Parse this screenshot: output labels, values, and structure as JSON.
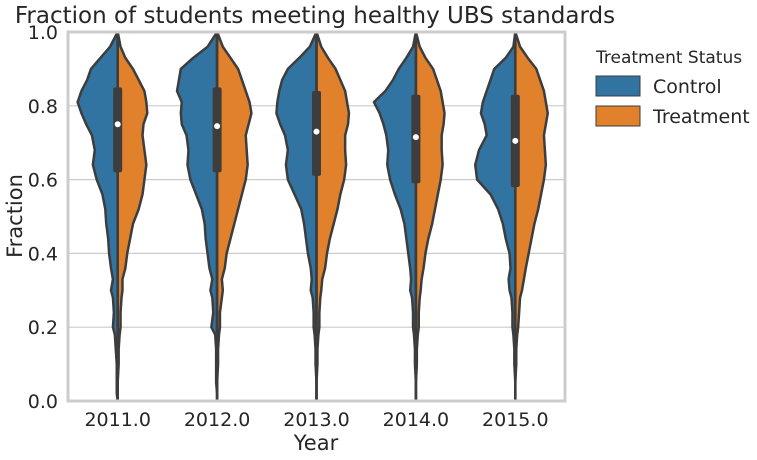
{
  "chart_data": {
    "type": "violin",
    "title": "Fraction of students meeting healthy UBS standards",
    "xlabel": "Year",
    "ylabel": "Fraction",
    "ylim": [
      0,
      1
    ],
    "yticks": [
      "0.0",
      "0.2",
      "0.4",
      "0.6",
      "0.8",
      "1.0"
    ],
    "categories": [
      "2011.0",
      "2012.0",
      "2013.0",
      "2014.0",
      "2015.0"
    ],
    "grid": "horizontal",
    "legend": {
      "title": "Treatment Status",
      "placement": "outside-right",
      "entries": [
        "Control",
        "Treatment"
      ]
    },
    "colors": {
      "Control": "#3274a1",
      "Treatment": "#e1812c",
      "outline": "#3d3d3d",
      "grid": "#cccccc",
      "frame": "#cccccc"
    },
    "summary": [
      {
        "category": "2011.0",
        "q1": 0.62,
        "median": 0.75,
        "q3": 0.85,
        "min": 0.02,
        "max": 1.0
      },
      {
        "category": "2012.0",
        "q1": 0.62,
        "median": 0.745,
        "q3": 0.85,
        "min": 0.0,
        "max": 1.0
      },
      {
        "category": "2013.0",
        "q1": 0.61,
        "median": 0.73,
        "q3": 0.84,
        "min": 0.0,
        "max": 1.0
      },
      {
        "category": "2014.0",
        "q1": 0.59,
        "median": 0.715,
        "q3": 0.83,
        "min": 0.0,
        "max": 1.0
      },
      {
        "category": "2015.0",
        "q1": 0.58,
        "median": 0.705,
        "q3": 0.83,
        "min": 0.0,
        "max": 1.0
      }
    ],
    "density_y": [
      0,
      0.02,
      0.05,
      0.1,
      0.14,
      0.18,
      0.2,
      0.24,
      0.28,
      0.3,
      0.33,
      0.36,
      0.4,
      0.44,
      0.48,
      0.52,
      0.56,
      0.6,
      0.64,
      0.68,
      0.72,
      0.75,
      0.78,
      0.81,
      0.84,
      0.87,
      0.9,
      0.93,
      0.96,
      1.0
    ],
    "series": [
      {
        "name": "Control",
        "densities": [
          [
            0.0,
            0.01,
            0.01,
            0.01,
            0.02,
            0.03,
            0.05,
            0.04,
            0.05,
            0.07,
            0.05,
            0.07,
            0.09,
            0.1,
            0.12,
            0.13,
            0.16,
            0.22,
            0.26,
            0.24,
            0.27,
            0.33,
            0.38,
            0.42,
            0.38,
            0.32,
            0.28,
            0.18,
            0.08,
            0.0
          ],
          [
            0.0,
            0.0,
            0.01,
            0.01,
            0.01,
            0.02,
            0.06,
            0.04,
            0.05,
            0.07,
            0.05,
            0.08,
            0.1,
            0.12,
            0.13,
            0.16,
            0.22,
            0.28,
            0.31,
            0.3,
            0.32,
            0.37,
            0.38,
            0.37,
            0.42,
            0.4,
            0.38,
            0.25,
            0.1,
            0.0
          ],
          [
            0.0,
            0.0,
            0.0,
            0.01,
            0.01,
            0.02,
            0.03,
            0.03,
            0.04,
            0.06,
            0.05,
            0.06,
            0.09,
            0.11,
            0.13,
            0.16,
            0.23,
            0.3,
            0.32,
            0.3,
            0.33,
            0.38,
            0.42,
            0.41,
            0.39,
            0.36,
            0.3,
            0.18,
            0.07,
            0.0
          ],
          [
            0.0,
            0.0,
            0.0,
            0.01,
            0.01,
            0.02,
            0.03,
            0.03,
            0.04,
            0.06,
            0.05,
            0.06,
            0.08,
            0.1,
            0.12,
            0.16,
            0.22,
            0.27,
            0.3,
            0.29,
            0.31,
            0.34,
            0.38,
            0.44,
            0.32,
            0.24,
            0.18,
            0.1,
            0.03,
            0.0
          ],
          [
            0.0,
            0.0,
            0.0,
            0.01,
            0.01,
            0.02,
            0.03,
            0.03,
            0.04,
            0.06,
            0.07,
            0.05,
            0.06,
            0.1,
            0.13,
            0.18,
            0.26,
            0.4,
            0.42,
            0.38,
            0.3,
            0.32,
            0.36,
            0.34,
            0.3,
            0.26,
            0.22,
            0.1,
            0.02,
            0.0
          ]
        ]
      },
      {
        "name": "Treatment",
        "densities": [
          [
            0.0,
            0.0,
            0.0,
            0.01,
            0.01,
            0.02,
            0.03,
            0.03,
            0.04,
            0.05,
            0.05,
            0.08,
            0.1,
            0.13,
            0.16,
            0.22,
            0.26,
            0.28,
            0.3,
            0.28,
            0.26,
            0.27,
            0.31,
            0.3,
            0.28,
            0.22,
            0.16,
            0.08,
            0.03,
            0.0
          ],
          [
            0.0,
            0.0,
            0.0,
            0.01,
            0.01,
            0.02,
            0.03,
            0.03,
            0.05,
            0.06,
            0.05,
            0.08,
            0.1,
            0.14,
            0.18,
            0.22,
            0.26,
            0.3,
            0.32,
            0.31,
            0.3,
            0.33,
            0.36,
            0.34,
            0.3,
            0.26,
            0.22,
            0.14,
            0.06,
            0.0
          ],
          [
            0.0,
            0.0,
            0.0,
            0.01,
            0.01,
            0.02,
            0.03,
            0.03,
            0.04,
            0.05,
            0.06,
            0.09,
            0.11,
            0.14,
            0.18,
            0.22,
            0.25,
            0.29,
            0.31,
            0.3,
            0.3,
            0.33,
            0.34,
            0.32,
            0.3,
            0.25,
            0.2,
            0.12,
            0.05,
            0.0
          ],
          [
            0.0,
            0.0,
            0.0,
            0.01,
            0.01,
            0.02,
            0.03,
            0.03,
            0.04,
            0.05,
            0.06,
            0.08,
            0.1,
            0.13,
            0.17,
            0.2,
            0.23,
            0.26,
            0.28,
            0.27,
            0.27,
            0.29,
            0.3,
            0.28,
            0.26,
            0.22,
            0.18,
            0.1,
            0.04,
            0.0
          ],
          [
            0.0,
            0.0,
            0.0,
            0.01,
            0.01,
            0.02,
            0.03,
            0.04,
            0.05,
            0.07,
            0.09,
            0.11,
            0.14,
            0.17,
            0.2,
            0.24,
            0.27,
            0.3,
            0.32,
            0.31,
            0.3,
            0.32,
            0.34,
            0.32,
            0.3,
            0.26,
            0.22,
            0.13,
            0.05,
            0.0
          ]
        ]
      }
    ]
  }
}
